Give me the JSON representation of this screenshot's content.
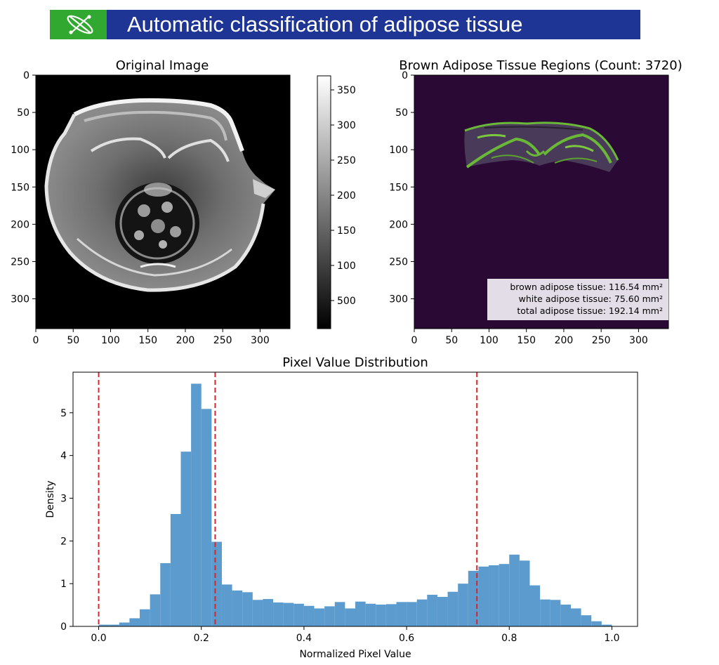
{
  "banner": {
    "title": "Automatic classification of adipose tissue",
    "logo_icon": "molecule-orbit-icon",
    "colors": {
      "bar": "#1f3596",
      "logo_bg": "#31a82f",
      "text": "#ffffff"
    }
  },
  "chart_data": [
    {
      "type": "heatmap",
      "title": "Original Image",
      "colormap": "gray",
      "x_ticks": [
        "0",
        "50",
        "100",
        "150",
        "200",
        "250",
        "300"
      ],
      "y_ticks": [
        "0",
        "50",
        "100",
        "150",
        "200",
        "250",
        "300"
      ],
      "xlim": [
        0,
        340
      ],
      "ylim": [
        0,
        340
      ],
      "colorbar": {
        "ticks": [
          "350",
          "300",
          "250",
          "200",
          "150",
          "100",
          "500"
        ],
        "range": [
          0,
          370
        ]
      }
    },
    {
      "type": "heatmap",
      "title": "Brown Adipose Tissue Regions (Count: 3720)",
      "colormap": "viridis",
      "x_ticks": [
        "0",
        "50",
        "100",
        "150",
        "200",
        "250",
        "300"
      ],
      "y_ticks": [
        "0",
        "50",
        "100",
        "150",
        "200",
        "250",
        "300"
      ],
      "xlim": [
        0,
        340
      ],
      "ylim": [
        0,
        340
      ],
      "annotation": [
        "brown adipose tissue: 116.54 mm²",
        "white adipose tissue: 75.60 mm²",
        "total adipose tissue: 192.14 mm²"
      ]
    },
    {
      "type": "bar",
      "title": "Pixel Value Distribution",
      "xlabel": "Normalized Pixel Value",
      "ylabel": "Density",
      "xlim": [
        -0.05,
        1.05
      ],
      "ylim": [
        0,
        5.95
      ],
      "x_ticks": [
        "0.0",
        "0.2",
        "0.4",
        "0.6",
        "0.8",
        "1.0"
      ],
      "y_ticks": [
        "0",
        "1",
        "2",
        "3",
        "4",
        "5"
      ],
      "bin_edges": [
        0,
        0.02,
        0.04,
        0.06,
        0.08,
        0.1,
        0.12,
        0.14,
        0.16,
        0.18,
        0.2,
        0.22,
        0.24,
        0.26,
        0.28,
        0.3,
        0.32,
        0.34,
        0.36,
        0.38,
        0.4,
        0.42,
        0.44,
        0.46,
        0.48,
        0.5,
        0.52,
        0.54,
        0.56,
        0.58,
        0.6,
        0.62,
        0.64,
        0.66,
        0.68,
        0.7,
        0.72,
        0.74,
        0.76,
        0.78,
        0.8,
        0.82,
        0.84,
        0.86,
        0.88,
        0.9,
        0.92,
        0.94,
        0.96,
        0.98,
        1.0
      ],
      "values": [
        0.04,
        0.04,
        0.09,
        0.19,
        0.4,
        0.75,
        1.48,
        2.63,
        4.09,
        5.68,
        5.09,
        1.98,
        0.98,
        0.84,
        0.8,
        0.62,
        0.64,
        0.56,
        0.55,
        0.53,
        0.48,
        0.42,
        0.47,
        0.57,
        0.42,
        0.58,
        0.53,
        0.51,
        0.52,
        0.57,
        0.57,
        0.63,
        0.74,
        0.69,
        0.81,
        1.0,
        1.3,
        1.4,
        1.43,
        1.46,
        1.68,
        1.54,
        0.96,
        0.63,
        0.62,
        0.51,
        0.42,
        0.26,
        0.12,
        0.04
      ],
      "bar_color": "#5b9bcd",
      "vlines": [
        0.0,
        0.227,
        0.737
      ],
      "vline_color": "#d62728"
    }
  ]
}
